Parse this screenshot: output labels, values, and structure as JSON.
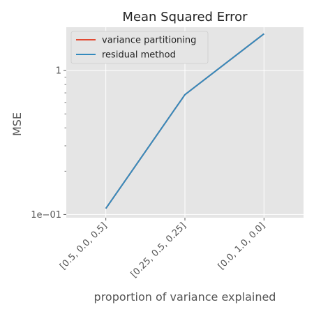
{
  "chart_data": {
    "type": "line",
    "title": "Mean Squared Error",
    "xlabel": "proportion of variance explained",
    "ylabel": "MSE",
    "yscale": "log",
    "ylim": [
      0.095,
      2.0
    ],
    "categories": [
      "[0.5, 0.0, 0.5]",
      "[0.25, 0.5, 0.25]",
      "[0.0, 1.0, 0.0]"
    ],
    "y_tick_labels": [
      {
        "value": 0.1,
        "label": "1e−01"
      },
      {
        "value": 1,
        "label": "1"
      }
    ],
    "series": [
      {
        "name": "variance partitioning",
        "color": "#E24A33",
        "values": [
          0.11,
          0.68,
          1.8
        ]
      },
      {
        "name": "residual method",
        "color": "#348ABD",
        "values": [
          0.11,
          0.68,
          1.8
        ]
      }
    ],
    "grid": true,
    "legend_position": "top-left",
    "background": "#E5E5E5"
  }
}
